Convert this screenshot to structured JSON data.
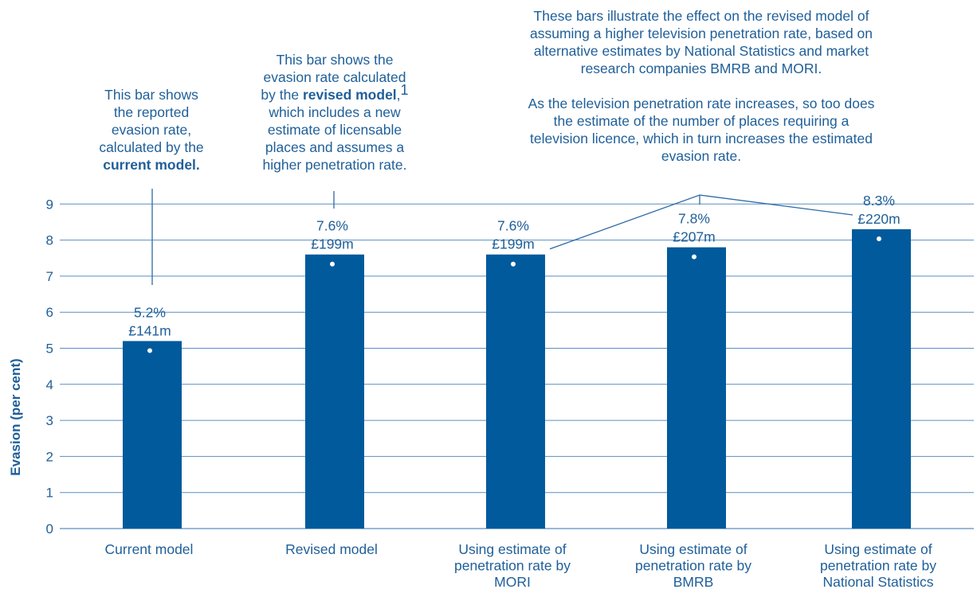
{
  "chart_data": {
    "type": "bar",
    "categories": [
      [
        "Current model"
      ],
      [
        "Revised model"
      ],
      [
        "Using estimate of",
        "penetration rate by",
        "MORI"
      ],
      [
        "Using estimate of",
        "penetration rate by",
        "BMRB"
      ],
      [
        "Using estimate of",
        "penetration rate by",
        "National Statistics"
      ]
    ],
    "values": [
      5.2,
      7.6,
      7.6,
      7.8,
      8.3
    ],
    "bar_labels": [
      {
        "pct": "5.2%",
        "amount": "£141m"
      },
      {
        "pct": "7.6%",
        "amount": "£199m"
      },
      {
        "pct": "7.6%",
        "amount": "£199m"
      },
      {
        "pct": "7.8%",
        "amount": "£207m"
      },
      {
        "pct": "8.3%",
        "amount": "£220m"
      }
    ],
    "ylabel": "Evasion (per cent)",
    "yticks": [
      0,
      1,
      2,
      3,
      4,
      5,
      6,
      7,
      8,
      9
    ],
    "ylim": [
      0,
      9.5
    ],
    "grid": true
  },
  "annotations": {
    "current": {
      "line1": "This bar shows",
      "line2": "the reported",
      "line3": "evasion rate,",
      "line4": "calculated by the",
      "bold": "current model."
    },
    "revised": {
      "line1": "This bar shows the",
      "line2": "evasion rate calculated",
      "line3_pre": "by the ",
      "line3_bold": "revised model",
      "line3_post": ",",
      "footnote": "1",
      "line4": "which includes a new",
      "line5": "estimate of licensable",
      "line6": "places and assumes a",
      "line7": "higher penetration rate."
    },
    "penetration": {
      "para1": [
        "These bars illustrate the effect on the revised model of",
        "assuming a higher television penetration rate, based on",
        "alternative estimates by National Statistics and market",
        "research companies BMRB and MORI."
      ],
      "para2": [
        "As the television penetration rate increases, so too does",
        "the estimate of the number of places requiring a",
        "television licence, which in turn increases the estimated",
        "evasion rate."
      ]
    }
  },
  "colors": {
    "bar": "#005a9c",
    "text": "#1f5f99",
    "grid": "#5b8fc0",
    "connector": "#2d6aa6"
  }
}
